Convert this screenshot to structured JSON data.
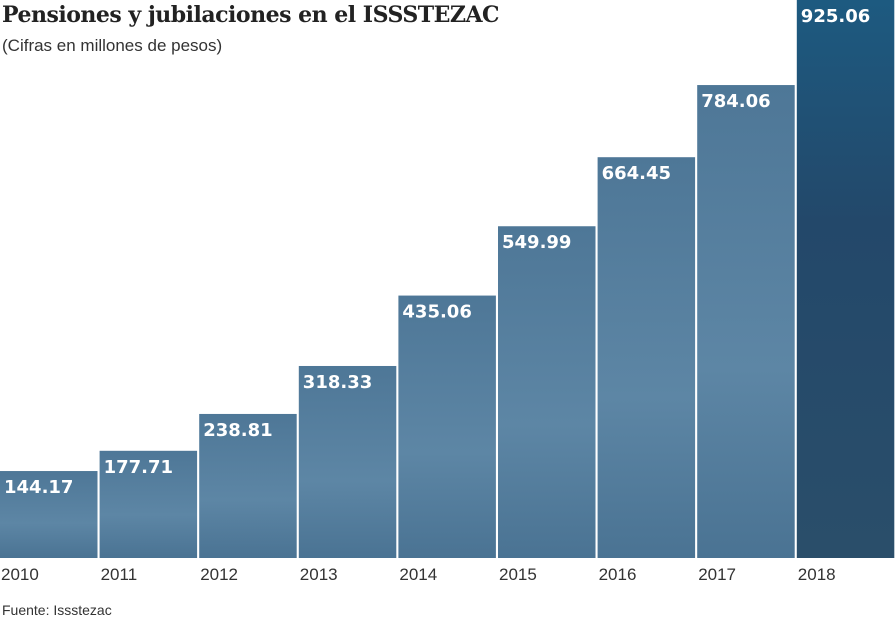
{
  "chart_data": {
    "type": "bar",
    "title": "Pensiones y jubilaciones en el ISSSTEZAC",
    "subtitle": "(Cifras en millones de pesos)",
    "source": "Fuente: Issstezac",
    "categories": [
      "2010",
      "2011",
      "2012",
      "2013",
      "2014",
      "2015",
      "2016",
      "2017",
      "2018"
    ],
    "values": [
      144.17,
      177.71,
      238.81,
      318.33,
      435.06,
      549.99,
      664.45,
      784.06,
      925.06
    ],
    "value_labels": [
      "144.17",
      "177.71",
      "238.81",
      "318.33",
      "435.06",
      "549.99",
      "664.45",
      "784.06",
      "925.06"
    ],
    "ylim": [
      0,
      925.06
    ],
    "grid": false,
    "colors": {
      "bar": "#557f9f",
      "bar_dark": "#2f5672",
      "last_bar": "#1f5577",
      "label": "#ffffff"
    }
  }
}
